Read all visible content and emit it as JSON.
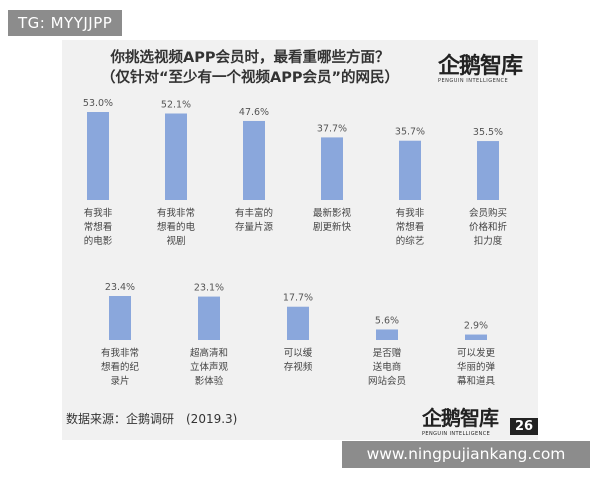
{
  "tag": "TG: MYYJJPP",
  "title_line1": "你挑选视频APP会员时，最看重哪些方面？",
  "title_line2": "（仅针对“至少有一个视频APP会员”的网民）",
  "logo": {
    "main": "企鹅智库",
    "sub": "PENGUIN INTELLIGENCE"
  },
  "source": "数据来源：企鹅调研　(2019.3)",
  "page_number": "26",
  "url": "www.ningpujiankang.com",
  "colors": {
    "bar": "#8aa7dc",
    "card_bg": "#f1f1f1",
    "badge_bg": "#8c8c8c"
  },
  "chart_data": {
    "type": "bar",
    "title": "你挑选视频APP会员时，最看重哪些方面？",
    "subtitle": "（仅针对“至少有一个视频APP会员”的网民）",
    "unit": "%",
    "ylim": [
      0,
      60
    ],
    "grid": false,
    "categories": [
      [
        "有我非",
        "常想看",
        "的电影"
      ],
      [
        "有我非常",
        "想看的电",
        "视剧"
      ],
      [
        "有丰富的",
        "存量片源"
      ],
      [
        "最新影视",
        "剧更新快"
      ],
      [
        "有我非",
        "常想看",
        "的综艺"
      ],
      [
        "会员购买",
        "价格和折",
        "扣力度"
      ],
      [
        "有我非常",
        "想看的纪",
        "录片"
      ],
      [
        "超高清和",
        "立体声观",
        "影体验"
      ],
      [
        "可以缓",
        "存视频"
      ],
      [
        "是否赠",
        "送电商",
        "网站会员"
      ],
      [
        "可以发更",
        "华丽的弹",
        "幕和道具"
      ]
    ],
    "values": [
      53.0,
      52.1,
      47.6,
      37.7,
      35.7,
      35.5,
      23.4,
      23.1,
      17.7,
      5.6,
      2.9
    ],
    "value_labels": [
      "53.0%",
      "52.1%",
      "47.6%",
      "37.7%",
      "35.7%",
      "35.5%",
      "23.4%",
      "23.1%",
      "17.7%",
      "5.6%",
      "2.9%"
    ]
  }
}
